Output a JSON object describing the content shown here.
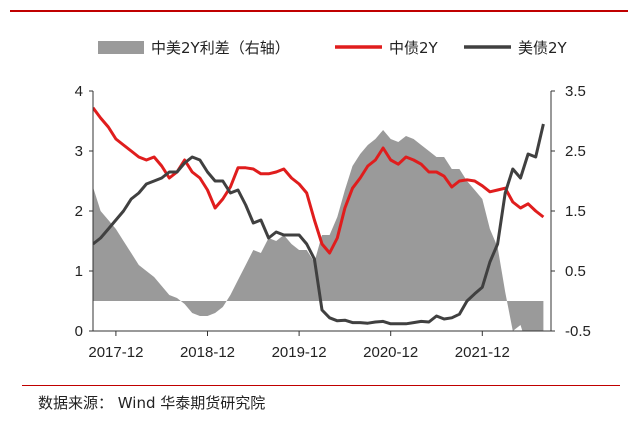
{
  "chart_data": {
    "type": "line",
    "title": "",
    "xlabel": "",
    "ylabel": "",
    "colors": {
      "spread": "#9a9a9a",
      "china": "#e01d1d",
      "us": "#404040"
    },
    "legend": {
      "placement": "top",
      "entries": [
        "中美2Y利差（右轴）",
        "中债2Y",
        "美债2Y"
      ]
    },
    "x_range": [
      "2017-09",
      "2022-09"
    ],
    "x_ticks": [
      "2017-12",
      "2018-12",
      "2019-12",
      "2020-12",
      "2021-12"
    ],
    "y_left": {
      "range": [
        0,
        4
      ],
      "ticks": [
        "0",
        "1",
        "2",
        "3",
        "4"
      ]
    },
    "y_right": {
      "range": [
        -0.5,
        3.5
      ],
      "ticks": [
        "-0.5",
        "0.5",
        "1.5",
        "2.5",
        "3.5"
      ]
    },
    "grid": false,
    "series": [
      {
        "name": "中债2Y",
        "axis": "left",
        "type": "line",
        "x": [
          "2017-09",
          "2017-10",
          "2017-11",
          "2017-12",
          "2018-01",
          "2018-02",
          "2018-03",
          "2018-04",
          "2018-05",
          "2018-06",
          "2018-07",
          "2018-08",
          "2018-09",
          "2018-10",
          "2018-11",
          "2018-12",
          "2019-01",
          "2019-02",
          "2019-03",
          "2019-04",
          "2019-05",
          "2019-06",
          "2019-07",
          "2019-08",
          "2019-09",
          "2019-10",
          "2019-11",
          "2019-12",
          "2020-01",
          "2020-02",
          "2020-03",
          "2020-04",
          "2020-05",
          "2020-06",
          "2020-07",
          "2020-08",
          "2020-09",
          "2020-10",
          "2020-11",
          "2020-12",
          "2021-01",
          "2021-02",
          "2021-03",
          "2021-04",
          "2021-05",
          "2021-06",
          "2021-07",
          "2021-08",
          "2021-09",
          "2021-10",
          "2021-11",
          "2021-12",
          "2022-01",
          "2022-02",
          "2022-03",
          "2022-04",
          "2022-05",
          "2022-06",
          "2022-07",
          "2022-08"
        ],
        "y": [
          3.72,
          3.55,
          3.4,
          3.2,
          3.1,
          3.0,
          2.9,
          2.85,
          2.9,
          2.75,
          2.55,
          2.65,
          2.85,
          2.65,
          2.55,
          2.35,
          2.05,
          2.2,
          2.4,
          2.72,
          2.72,
          2.7,
          2.62,
          2.62,
          2.65,
          2.7,
          2.55,
          2.45,
          2.3,
          1.85,
          1.45,
          1.3,
          1.55,
          2.05,
          2.38,
          2.55,
          2.75,
          2.85,
          3.05,
          2.85,
          2.78,
          2.9,
          2.85,
          2.78,
          2.65,
          2.65,
          2.58,
          2.4,
          2.5,
          2.52,
          2.5,
          2.42,
          2.32,
          2.35,
          2.38,
          2.15,
          2.05,
          2.12,
          2.0,
          1.9
        ]
      },
      {
        "name": "美债2Y",
        "axis": "left",
        "type": "line",
        "x": [
          "2017-09",
          "2017-10",
          "2017-11",
          "2017-12",
          "2018-01",
          "2018-02",
          "2018-03",
          "2018-04",
          "2018-05",
          "2018-06",
          "2018-07",
          "2018-08",
          "2018-09",
          "2018-10",
          "2018-11",
          "2018-12",
          "2019-01",
          "2019-02",
          "2019-03",
          "2019-04",
          "2019-05",
          "2019-06",
          "2019-07",
          "2019-08",
          "2019-09",
          "2019-10",
          "2019-11",
          "2019-12",
          "2020-01",
          "2020-02",
          "2020-03",
          "2020-04",
          "2020-05",
          "2020-06",
          "2020-07",
          "2020-08",
          "2020-09",
          "2020-10",
          "2020-11",
          "2020-12",
          "2021-01",
          "2021-02",
          "2021-03",
          "2021-04",
          "2021-05",
          "2021-06",
          "2021-07",
          "2021-08",
          "2021-09",
          "2021-10",
          "2021-11",
          "2021-12",
          "2022-01",
          "2022-02",
          "2022-03",
          "2022-04",
          "2022-05",
          "2022-06",
          "2022-07",
          "2022-08"
        ],
        "y": [
          1.45,
          1.55,
          1.7,
          1.85,
          2.0,
          2.2,
          2.3,
          2.45,
          2.5,
          2.55,
          2.65,
          2.65,
          2.8,
          2.9,
          2.85,
          2.65,
          2.5,
          2.5,
          2.3,
          2.35,
          2.1,
          1.8,
          1.85,
          1.55,
          1.65,
          1.6,
          1.6,
          1.6,
          1.45,
          1.2,
          0.35,
          0.22,
          0.17,
          0.18,
          0.14,
          0.14,
          0.13,
          0.15,
          0.16,
          0.12,
          0.12,
          0.12,
          0.14,
          0.16,
          0.15,
          0.25,
          0.2,
          0.22,
          0.28,
          0.5,
          0.62,
          0.73,
          1.15,
          1.45,
          2.3,
          2.7,
          2.55,
          2.95,
          2.9,
          3.45
        ]
      },
      {
        "name": "中美2Y利差（右轴）",
        "axis": "right",
        "type": "area",
        "baseline": 0,
        "x": [
          "2017-09",
          "2017-10",
          "2017-11",
          "2017-12",
          "2018-01",
          "2018-02",
          "2018-03",
          "2018-04",
          "2018-05",
          "2018-06",
          "2018-07",
          "2018-08",
          "2018-09",
          "2018-10",
          "2018-11",
          "2018-12",
          "2019-01",
          "2019-02",
          "2019-03",
          "2019-04",
          "2019-05",
          "2019-06",
          "2019-07",
          "2019-08",
          "2019-09",
          "2019-10",
          "2019-11",
          "2019-12",
          "2020-01",
          "2020-02",
          "2020-03",
          "2020-04",
          "2020-05",
          "2020-06",
          "2020-07",
          "2020-08",
          "2020-09",
          "2020-10",
          "2020-11",
          "2020-12",
          "2021-01",
          "2021-02",
          "2021-03",
          "2021-04",
          "2021-05",
          "2021-06",
          "2021-07",
          "2021-08",
          "2021-09",
          "2021-10",
          "2021-11",
          "2021-12",
          "2022-01",
          "2022-02",
          "2022-03",
          "2022-04",
          "2022-05",
          "2022-06",
          "2022-07",
          "2022-08"
        ],
        "y": [
          1.9,
          1.5,
          1.35,
          1.2,
          1.0,
          0.8,
          0.6,
          0.5,
          0.4,
          0.25,
          0.1,
          0.05,
          -0.05,
          -0.2,
          -0.25,
          -0.25,
          -0.2,
          -0.1,
          0.1,
          0.35,
          0.6,
          0.85,
          0.8,
          1.05,
          1.0,
          1.1,
          0.95,
          0.85,
          0.85,
          0.65,
          1.1,
          1.1,
          1.4,
          1.85,
          2.25,
          2.45,
          2.6,
          2.7,
          2.85,
          2.7,
          2.65,
          2.75,
          2.7,
          2.6,
          2.5,
          2.4,
          2.4,
          2.2,
          2.2,
          2.0,
          1.85,
          1.7,
          1.2,
          0.9,
          0.15,
          -0.5,
          -0.4,
          -0.8,
          -0.85,
          -1.5
        ]
      }
    ]
  },
  "source": "数据来源： Wind  华泰期货研究院"
}
